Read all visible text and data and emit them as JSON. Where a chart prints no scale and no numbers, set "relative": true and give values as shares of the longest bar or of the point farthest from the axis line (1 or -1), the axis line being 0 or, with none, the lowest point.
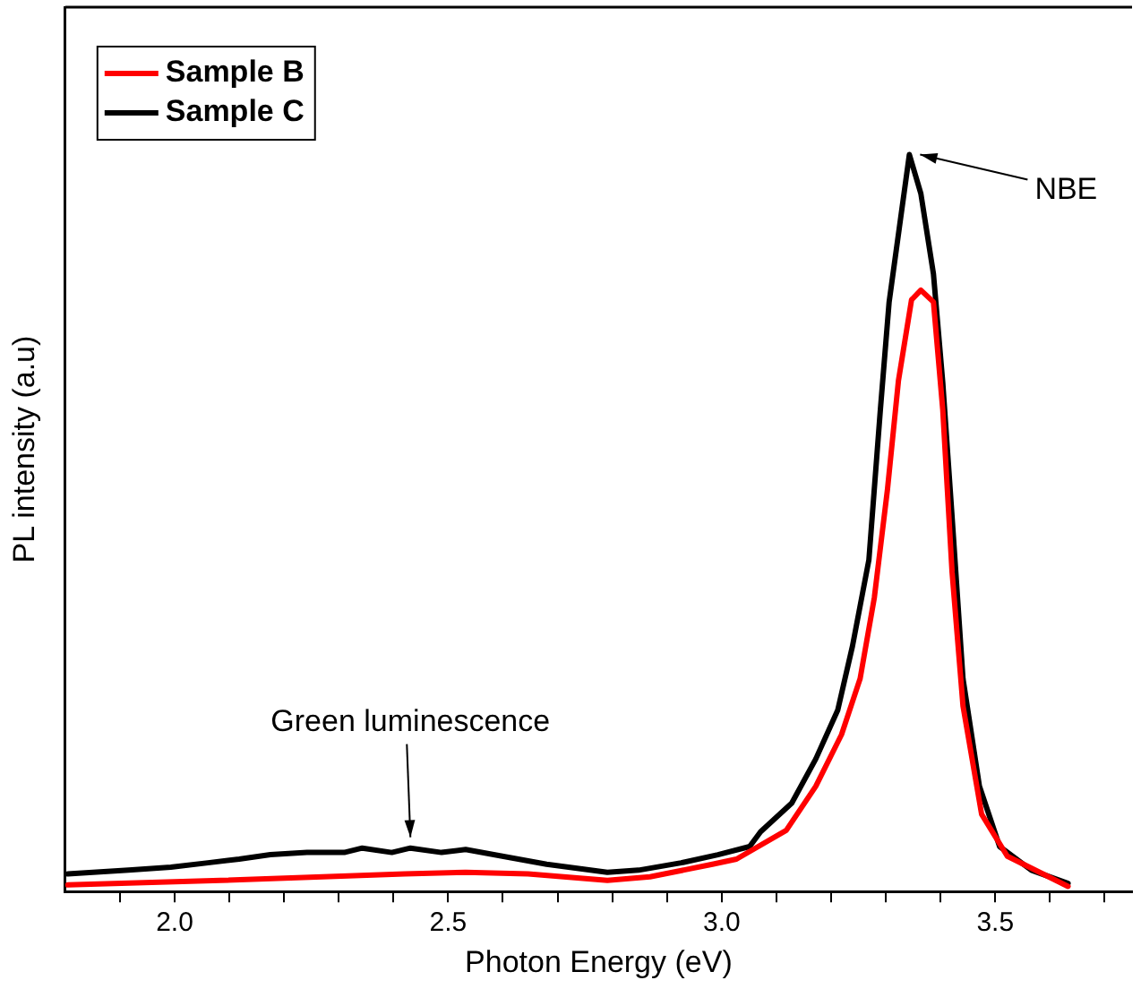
{
  "chart_data": {
    "type": "line",
    "xlabel": "Photon Energy (eV)",
    "ylabel": "PL intensity (a.u)",
    "relative": true,
    "legend": "top left",
    "xlim": [
      1.8,
      3.75
    ],
    "xticks": [
      {
        "value": 1.9,
        "label": null
      },
      {
        "value": 2,
        "label": "2.0"
      },
      {
        "value": 2.1,
        "label": null
      },
      {
        "value": 2.2,
        "label": null
      },
      {
        "value": 2.3,
        "label": null
      },
      {
        "value": 2.4,
        "label": null
      },
      {
        "value": 2.5,
        "label": "2.5"
      },
      {
        "value": 2.6,
        "label": null
      },
      {
        "value": 2.7,
        "label": null
      },
      {
        "value": 2.8,
        "label": null
      },
      {
        "value": 2.9,
        "label": null
      },
      {
        "value": 3,
        "label": "3.0"
      },
      {
        "value": 3.1,
        "label": null
      },
      {
        "value": 3.2,
        "label": null
      },
      {
        "value": 3.3,
        "label": null
      },
      {
        "value": 3.4,
        "label": null
      },
      {
        "value": 3.5,
        "label": "3.5"
      },
      {
        "value": 3.6,
        "label": null
      },
      {
        "value": 3.7,
        "label": null
      }
    ],
    "series": [
      {
        "name": "Sample B",
        "color": "#ff0000",
        "x": [
          1.805,
          2.084,
          2.421,
          2.532,
          2.646,
          2.791,
          2.869,
          2.983,
          3.027,
          3.118,
          3.172,
          3.219,
          3.253,
          3.279,
          3.303,
          3.323,
          3.347,
          3.364,
          3.387,
          3.404,
          3.421,
          3.441,
          3.475,
          3.522,
          3.633
        ],
        "values": [
          0.009,
          0.015,
          0.024,
          0.026,
          0.024,
          0.015,
          0.02,
          0.037,
          0.044,
          0.083,
          0.143,
          0.213,
          0.289,
          0.399,
          0.546,
          0.693,
          0.803,
          0.816,
          0.8,
          0.654,
          0.434,
          0.252,
          0.105,
          0.048,
          0.007
        ]
      },
      {
        "name": "Sample C",
        "color": "#000000",
        "x": [
          1.805,
          1.916,
          1.993,
          2.061,
          2.118,
          2.175,
          2.242,
          2.31,
          2.343,
          2.397,
          2.431,
          2.488,
          2.532,
          2.599,
          2.68,
          2.791,
          2.848,
          2.926,
          2.993,
          3.051,
          3.071,
          3.128,
          3.172,
          3.212,
          3.239,
          3.269,
          3.29,
          3.306,
          3.343,
          3.364,
          3.387,
          3.404,
          3.421,
          3.441,
          3.471,
          3.508,
          3.566,
          3.633
        ],
        "values": [
          0.024,
          0.029,
          0.033,
          0.039,
          0.044,
          0.05,
          0.053,
          0.053,
          0.059,
          0.053,
          0.059,
          0.053,
          0.057,
          0.048,
          0.037,
          0.026,
          0.029,
          0.039,
          0.05,
          0.061,
          0.081,
          0.12,
          0.18,
          0.246,
          0.333,
          0.45,
          0.654,
          0.8,
          1.0,
          0.947,
          0.838,
          0.691,
          0.509,
          0.289,
          0.143,
          0.061,
          0.029,
          0.011
        ]
      }
    ],
    "annotations": [
      {
        "text": "NBE",
        "x": 3.343,
        "y": 1.0
      },
      {
        "text": "Green luminescence",
        "x": 2.431,
        "y": 0.059
      }
    ]
  }
}
